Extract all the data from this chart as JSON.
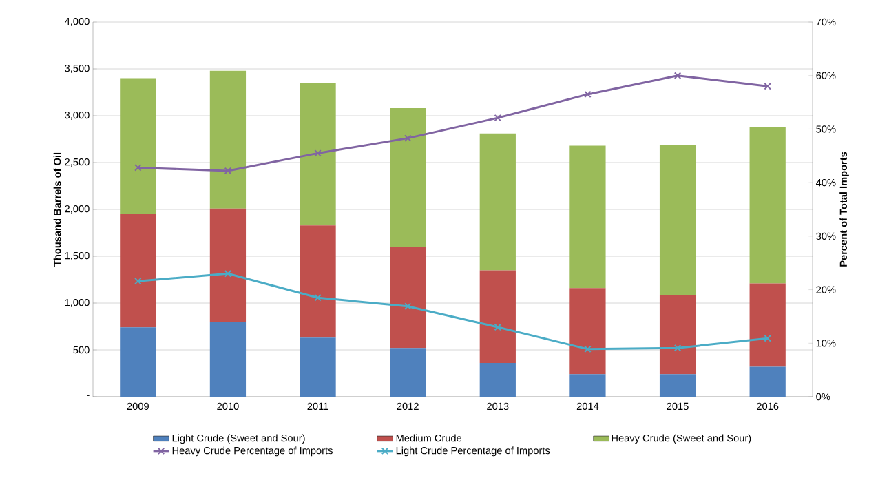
{
  "chart_data": {
    "type": "bar",
    "stacked": true,
    "categories": [
      "2009",
      "2010",
      "2011",
      "2012",
      "2013",
      "2014",
      "2015",
      "2016"
    ],
    "ylabel": "Thousand Barrels of Oil",
    "y2label": "Percent of Total Imports",
    "ylim": [
      0,
      4000
    ],
    "yticks": [
      {
        "value": 0,
        "label": "-"
      },
      500,
      {
        "value": 1000,
        "label": "1,000"
      },
      {
        "value": 1500,
        "label": "1,500"
      },
      {
        "value": 2000,
        "label": "2,000"
      },
      {
        "value": 2500,
        "label": "2,500"
      },
      {
        "value": 3000,
        "label": "3,000"
      },
      {
        "value": 3500,
        "label": "3,500"
      },
      {
        "value": 4000,
        "label": "4,000"
      }
    ],
    "y2lim": [
      0,
      70
    ],
    "y2ticks": [
      {
        "value": 0,
        "label": "0%"
      },
      {
        "value": 10,
        "label": "10%"
      },
      {
        "value": 20,
        "label": "20%"
      },
      {
        "value": 30,
        "label": "30%"
      },
      {
        "value": 40,
        "label": "40%"
      },
      {
        "value": 50,
        "label": "50%"
      },
      {
        "value": 60,
        "label": "60%"
      },
      {
        "value": 70,
        "label": "70%"
      }
    ],
    "grid": "y",
    "legend": "bottom",
    "series": [
      {
        "name": "Light Crude (Sweet and Sour)",
        "color": "#4f81bd",
        "values": [
          740,
          800,
          630,
          520,
          360,
          240,
          240,
          320
        ]
      },
      {
        "name": "Medium Crude",
        "color": "#c0504d",
        "values": [
          1210,
          1210,
          1200,
          1080,
          990,
          920,
          840,
          890
        ]
      },
      {
        "name": "Heavy Crude (Sweet and Sour)",
        "color": "#9bbb59",
        "values": [
          1450,
          1470,
          1520,
          1480,
          1460,
          1520,
          1610,
          1670
        ]
      },
      {
        "name": "Heavy Crude Percentage of Imports",
        "type": "line",
        "axis": "y2",
        "marker": "cross",
        "color": "#8064a2",
        "values": [
          42.8,
          42.2,
          45.5,
          48.3,
          52.1,
          56.5,
          60.0,
          58.0
        ]
      },
      {
        "name": "Light Crude Percentage of Imports",
        "type": "line",
        "axis": "y2",
        "marker": "cross",
        "color": "#4bacc6",
        "values": [
          21.6,
          23.0,
          18.5,
          16.9,
          13.0,
          8.9,
          9.1,
          10.9
        ]
      }
    ]
  }
}
